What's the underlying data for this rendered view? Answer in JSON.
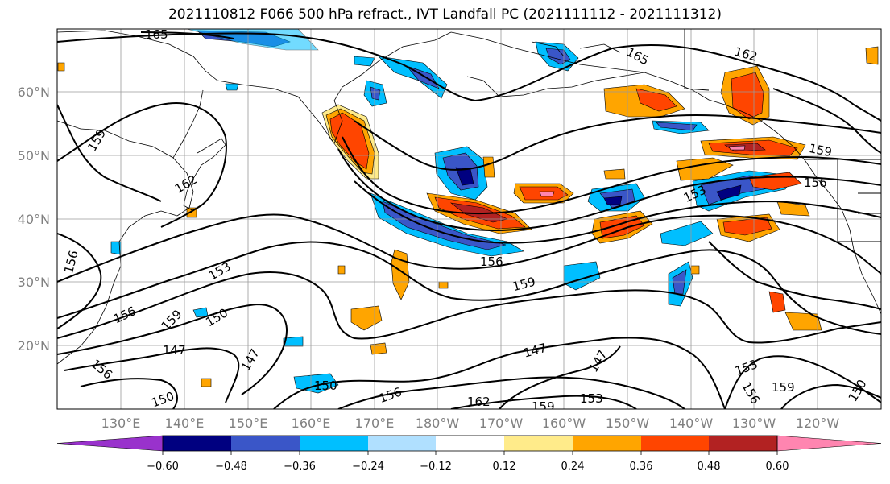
{
  "title": "2021110812 F066 500 hPa refract., IVT Landfall PC (2021111112 - 2021111312)",
  "map": {
    "lat_labels": [
      "60°N",
      "50°N",
      "40°N",
      "30°N",
      "20°N"
    ],
    "lon_labels": [
      "130°E",
      "140°E",
      "150°E",
      "160°E",
      "170°E",
      "180°W",
      "170°W",
      "160°W",
      "150°W",
      "140°W",
      "130°W",
      "120°W"
    ],
    "contour_labels": [
      "165",
      "165",
      "162",
      "159",
      "162",
      "159",
      "156",
      "153",
      "156",
      "159",
      "156",
      "153",
      "156",
      "159",
      "150",
      "147",
      "147",
      "150",
      "147",
      "150",
      "156",
      "162",
      "159",
      "153",
      "153",
      "156",
      "159",
      "150",
      "156",
      "147"
    ]
  },
  "colorbar": {
    "colors": [
      "#9932cc",
      "#000080",
      "#3a56c8",
      "#00bfff",
      "#b0e0ff",
      "#ffffff",
      "#ffeb8a",
      "#ffa500",
      "#ff4500",
      "#b22222",
      "#ff85b0"
    ],
    "tick_labels": [
      "−0.60",
      "−0.48",
      "−0.36",
      "−0.24",
      "−0.12",
      "0.12",
      "0.24",
      "0.36",
      "0.48",
      "0.60"
    ]
  }
}
